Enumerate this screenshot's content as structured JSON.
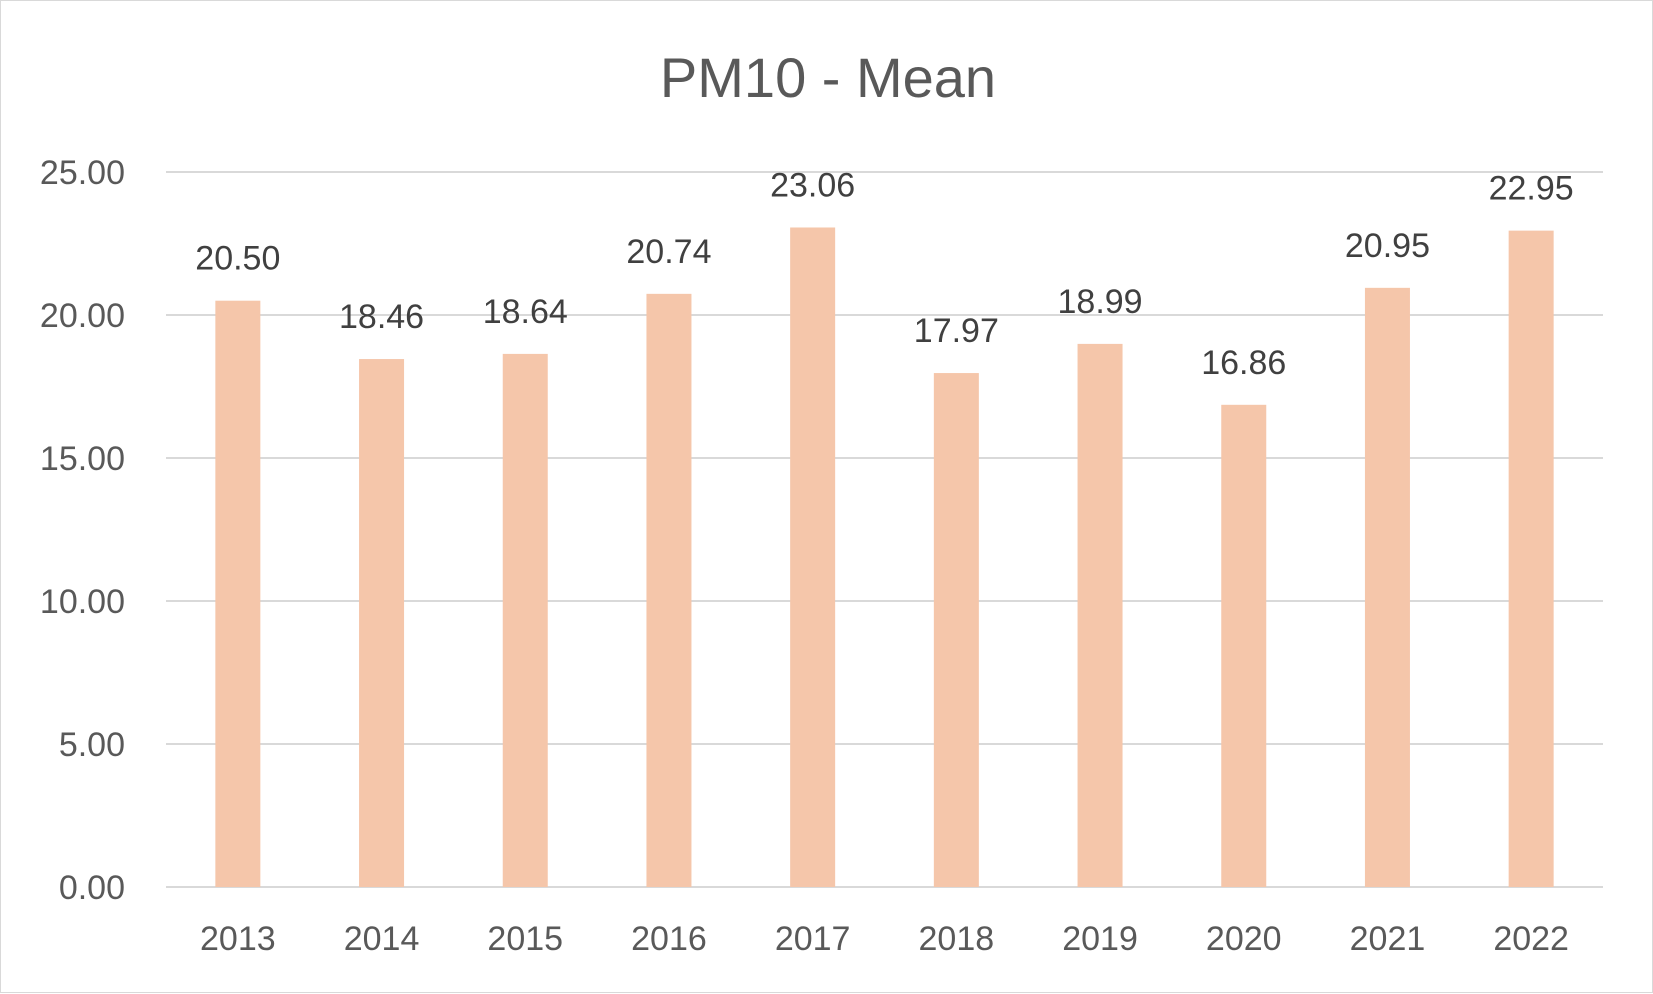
{
  "chart_data": {
    "type": "bar",
    "title": "PM10 - Mean",
    "xlabel": "",
    "ylabel": "",
    "categories": [
      "2013",
      "2014",
      "2015",
      "2016",
      "2017",
      "2018",
      "2019",
      "2020",
      "2021",
      "2022"
    ],
    "values": [
      20.5,
      18.46,
      18.64,
      20.74,
      23.06,
      17.97,
      18.99,
      16.86,
      20.95,
      22.95
    ],
    "data_labels": [
      "20.50",
      "18.46",
      "18.64",
      "20.74",
      "23.06",
      "17.97",
      "18.99",
      "16.86",
      "20.95",
      "22.95"
    ],
    "ylim": [
      0,
      25
    ],
    "yticks": [
      "0.00",
      "5.00",
      "10.00",
      "15.00",
      "20.00",
      "25.00"
    ],
    "grid": true,
    "legend": "none",
    "bar_color": "#f5c6aa"
  }
}
